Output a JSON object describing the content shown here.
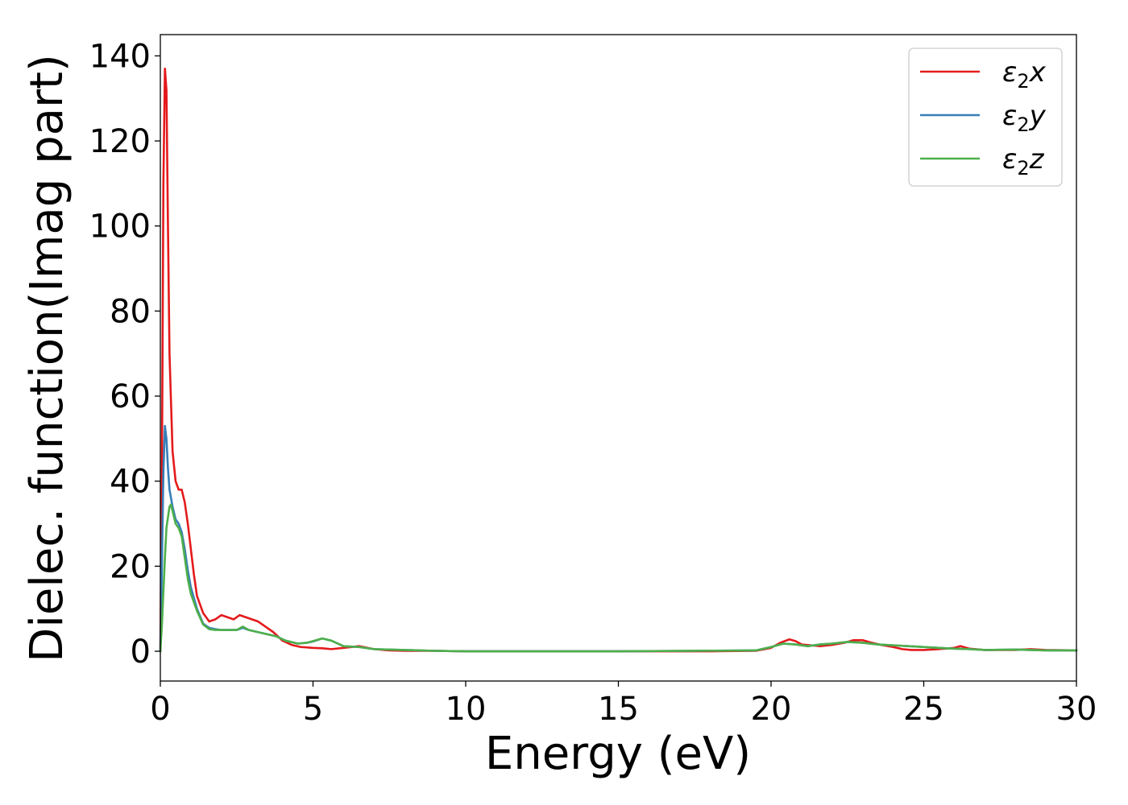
{
  "chart_data": {
    "type": "line",
    "title": "",
    "xlabel": "Energy (eV)",
    "ylabel": "Dielec. function(Imag part)",
    "xlim": [
      0,
      30
    ],
    "ylim": [
      -7,
      145
    ],
    "xticks": [
      0,
      5,
      10,
      15,
      20,
      25,
      30
    ],
    "yticks": [
      0,
      20,
      40,
      60,
      80,
      100,
      120,
      140
    ],
    "grid": false,
    "legend_position": "top-right",
    "series": [
      {
        "name": "ε2x",
        "legend": {
          "base": "ε",
          "sub": "2",
          "suffix": "x"
        },
        "color": "#e41a1c",
        "x": [
          0,
          0.05,
          0.1,
          0.15,
          0.2,
          0.25,
          0.3,
          0.4,
          0.5,
          0.6,
          0.7,
          0.8,
          0.9,
          1.0,
          1.1,
          1.2,
          1.4,
          1.6,
          1.8,
          2.0,
          2.2,
          2.4,
          2.6,
          2.8,
          3.0,
          3.2,
          3.4,
          3.7,
          4.0,
          4.3,
          4.6,
          5.0,
          5.3,
          5.6,
          6.0,
          6.5,
          7.0,
          7.5,
          8.0,
          9.0,
          10,
          12,
          15,
          18,
          19.5,
          20.0,
          20.3,
          20.6,
          20.8,
          21.0,
          21.3,
          21.6,
          22.0,
          22.4,
          22.7,
          23.0,
          23.3,
          23.6,
          24.0,
          24.3,
          24.6,
          25.0,
          25.5,
          26.0,
          26.2,
          26.5,
          27.0,
          28.0,
          28.5,
          29.0,
          30.0
        ],
        "values": [
          0,
          40,
          110,
          137,
          132,
          100,
          70,
          47,
          40,
          38,
          38,
          35,
          30,
          24,
          18,
          13,
          9,
          7,
          7.5,
          8.5,
          8,
          7.5,
          8.5,
          8,
          7.5,
          7,
          6,
          4.5,
          2.5,
          1.5,
          1,
          0.8,
          0.7,
          0.5,
          0.8,
          1.2,
          0.5,
          0.2,
          0.1,
          0.1,
          0,
          0,
          0,
          0,
          0.1,
          0.8,
          2,
          2.8,
          2.4,
          1.6,
          1.4,
          1.2,
          1.5,
          2,
          2.6,
          2.6,
          2,
          1.5,
          1,
          0.5,
          0.3,
          0.3,
          0.5,
          0.8,
          1.2,
          0.6,
          0.3,
          0.3,
          0.5,
          0.3,
          0.2
        ]
      },
      {
        "name": "ε2y",
        "legend": {
          "base": "ε",
          "sub": "2",
          "suffix": "y"
        },
        "color": "#377eb8",
        "x": [
          0,
          0.05,
          0.1,
          0.15,
          0.2,
          0.25,
          0.3,
          0.4,
          0.5,
          0.6,
          0.7,
          0.8,
          0.9,
          1.0,
          1.2,
          1.4,
          1.6,
          1.8,
          2.0,
          2.2,
          2.5,
          2.7,
          2.9,
          3.2,
          3.5,
          3.8,
          4.1,
          4.5,
          4.8,
          5.0,
          5.3,
          5.6,
          6.0,
          6.5,
          7.0,
          8.0,
          9.0,
          10,
          15,
          19.5,
          20.0,
          20.4,
          20.8,
          21.2,
          21.6,
          22.0,
          22.5,
          23.0,
          23.5,
          24.0,
          24.5,
          25.0,
          25.5,
          26.0,
          26.5,
          27.0,
          28.0,
          29.0,
          30.0
        ],
        "values": [
          0,
          20,
          42,
          53,
          50,
          43,
          38,
          34,
          31,
          30,
          28,
          24,
          19,
          15,
          10,
          6.5,
          5.5,
          5.2,
          5,
          5,
          5,
          5.5,
          5,
          4.5,
          4,
          3.5,
          2.5,
          1.8,
          2,
          2.3,
          3,
          2.5,
          1.2,
          1,
          0.5,
          0.3,
          0.1,
          0,
          0,
          0.2,
          1,
          1.8,
          1.6,
          1.2,
          1.6,
          1.8,
          2.2,
          2,
          1.6,
          1.4,
          1.2,
          1,
          0.8,
          0.6,
          0.5,
          0.3,
          0.4,
          0.2,
          0.2
        ]
      },
      {
        "name": "ε2z",
        "legend": {
          "base": "ε",
          "sub": "2",
          "suffix": "z"
        },
        "color": "#4daf4a",
        "x": [
          0,
          0.05,
          0.1,
          0.15,
          0.2,
          0.3,
          0.35,
          0.4,
          0.5,
          0.6,
          0.7,
          0.8,
          0.9,
          1.0,
          1.2,
          1.4,
          1.6,
          1.8,
          2.0,
          2.2,
          2.5,
          2.7,
          2.9,
          3.2,
          3.5,
          3.8,
          4.1,
          4.5,
          4.8,
          5.0,
          5.3,
          5.6,
          6.0,
          6.5,
          7.0,
          8.0,
          9.0,
          10,
          15,
          19.5,
          20.0,
          20.4,
          20.8,
          21.2,
          21.6,
          22.0,
          22.5,
          23.0,
          23.5,
          24.0,
          24.5,
          25.0,
          25.5,
          26.0,
          26.5,
          27.0,
          28.0,
          29.0,
          30.0
        ],
        "values": [
          0,
          6,
          14,
          22,
          29,
          34,
          34.5,
          33,
          30,
          29,
          27,
          22,
          17,
          13.5,
          9.5,
          6.3,
          5.2,
          5,
          5,
          5,
          5,
          5.8,
          5,
          4.5,
          4,
          3.5,
          2.5,
          1.8,
          2,
          2.4,
          3,
          2.5,
          1.2,
          1,
          0.5,
          0.3,
          0.1,
          0,
          0,
          0.2,
          1,
          1.8,
          1.6,
          1.2,
          1.6,
          1.8,
          2.2,
          2,
          1.6,
          1.4,
          1.2,
          1,
          0.8,
          0.6,
          0.5,
          0.3,
          0.4,
          0.2,
          0.2
        ]
      }
    ]
  }
}
